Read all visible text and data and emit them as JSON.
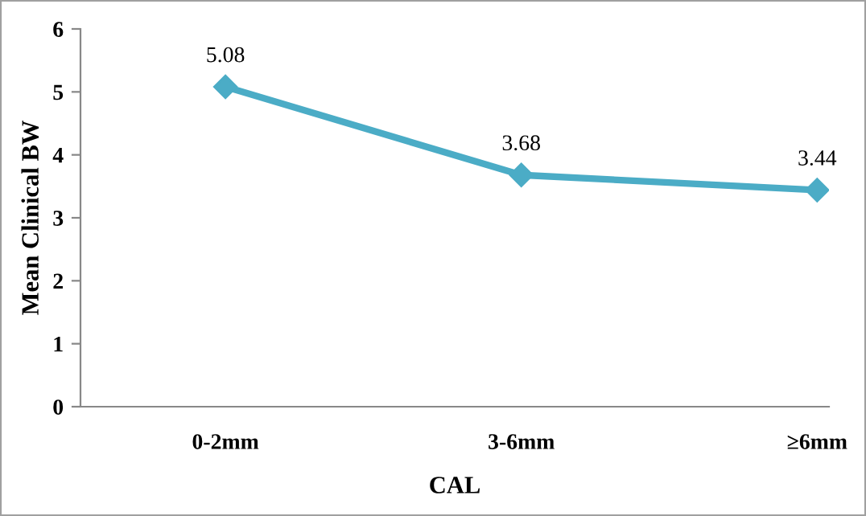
{
  "chart_data": {
    "type": "line",
    "xlabel": "CAL",
    "ylabel": "Mean Clinical BW",
    "categories": [
      "0-2mm",
      "3-6mm",
      "≥6mm"
    ],
    "series": [
      {
        "color": "#4bacc6",
        "values": [
          5.08,
          3.68,
          3.44
        ]
      }
    ],
    "ylim": [
      0,
      6
    ],
    "yticks": [
      0,
      1,
      2,
      3,
      4,
      5,
      6
    ],
    "grid": false,
    "legend": false,
    "marker": "diamond",
    "line_style": "solid",
    "data_labels": true
  }
}
